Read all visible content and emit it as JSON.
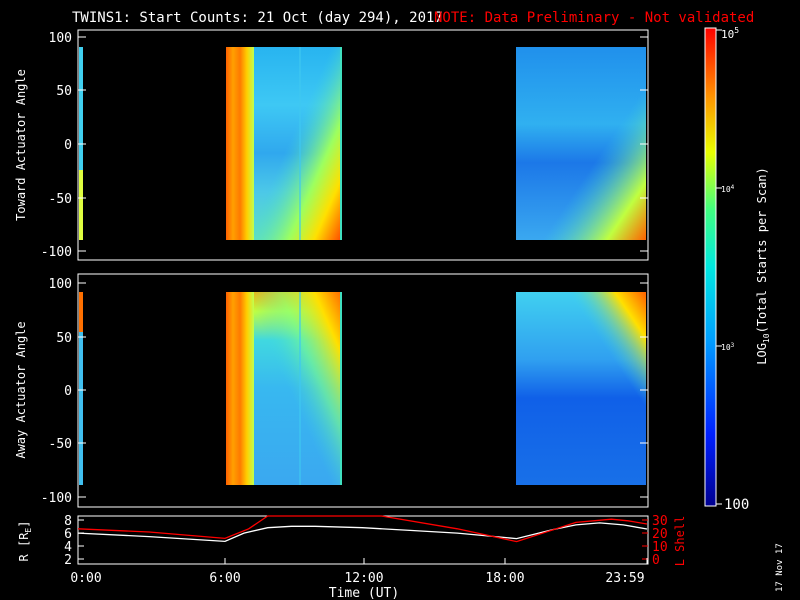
{
  "header": {
    "title": "TWINS1: Start Counts: 21 Oct (day 294), 2017",
    "note": "NOTE: Data Preliminary - Not validated",
    "note_color": "#ff0000"
  },
  "stamp": "17 Nov 17",
  "chart_data": [
    {
      "type": "heatmap",
      "panel": "toward",
      "ylabel": "Toward Actuator Angle",
      "ylim": [
        -110,
        110
      ],
      "yticks": [
        "100",
        "50",
        "0",
        "-50",
        "-100"
      ],
      "x_range_hours": [
        0,
        24
      ],
      "data_intervals_hours": [
        [
          0,
          0.05
        ],
        [
          6.3,
          10.8
        ],
        [
          18.5,
          24
        ]
      ],
      "colorscale": "rainbow"
    },
    {
      "type": "heatmap",
      "panel": "away",
      "ylabel": "Away Actuator Angle",
      "ylim": [
        -110,
        110
      ],
      "yticks": [
        "100",
        "50",
        "0",
        "-50",
        "-100"
      ],
      "x_range_hours": [
        0,
        24
      ],
      "data_intervals_hours": [
        [
          0,
          0.05
        ],
        [
          6.3,
          10.8
        ],
        [
          18.5,
          24
        ]
      ],
      "colorscale": "rainbow"
    },
    {
      "type": "line",
      "panel": "orbit",
      "xlabel": "Time (UT)",
      "xticks": [
        "0:00",
        "6:00",
        "12:00",
        "18:00",
        "23:59"
      ],
      "ylabel_left": "R [RE]",
      "ylabel_right": "L Shell",
      "yticks_left": [
        "8",
        "6",
        "4",
        "2"
      ],
      "yticks_right": [
        "30",
        "20",
        "10",
        "0"
      ],
      "ylim_left": [
        1.5,
        8.5
      ],
      "ylim_right": [
        0,
        30
      ],
      "series": [
        {
          "name": "R",
          "color": "#ffffff",
          "x": [
            0,
            3,
            6.2,
            7,
            8,
            9,
            10,
            12,
            14,
            16,
            18.5,
            20,
            21,
            22,
            23,
            24
          ],
          "values": [
            6.0,
            5.5,
            4.8,
            6.0,
            6.8,
            7.0,
            7.0,
            6.8,
            6.4,
            6.0,
            5.2,
            6.5,
            7.2,
            7.5,
            7.2,
            6.6
          ]
        },
        {
          "name": "L Shell",
          "color": "#ff0000",
          "x": [
            0,
            3,
            6.2,
            7.2,
            8.0,
            12.8,
            16,
            18.5,
            21,
            22.5,
            23.2,
            24
          ],
          "values": [
            22,
            20,
            16,
            22,
            30,
            30,
            22,
            14,
            26,
            28,
            27,
            25
          ]
        }
      ]
    },
    {
      "type": "heatmap",
      "panel": "colorbar",
      "label": "LOG10(Total Starts per Scan)",
      "ticks": [
        "10^5",
        "10^4",
        "10^3",
        "100"
      ],
      "tick_values": [
        100000,
        10000,
        1000,
        100
      ]
    }
  ],
  "colorbar_text": {
    "t5": "10",
    "t5sup": "5",
    "t4": "10",
    "t4sup": "4",
    "t3": "10",
    "t3sup": "3",
    "t2": "100",
    "label_pre": "LOG",
    "label_sub": "10",
    "label_post": "(Total Starts per Scan)"
  },
  "orbit_labels": {
    "r_pre": "R [R",
    "r_sub": "E",
    "r_post": "]",
    "lshell": "L Shell"
  }
}
